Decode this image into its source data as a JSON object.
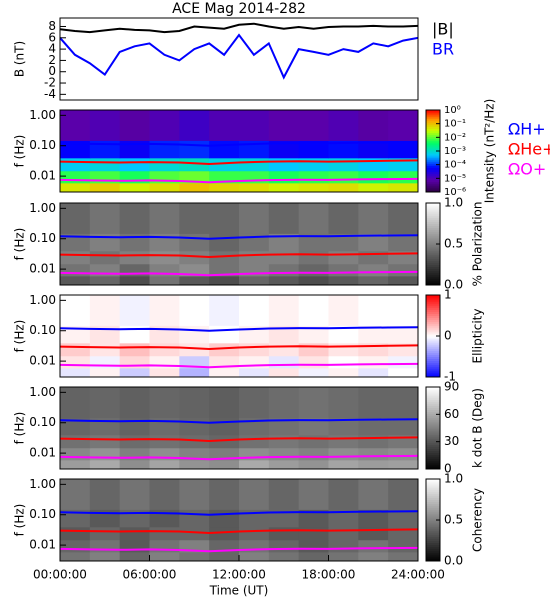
{
  "chart_data": [
    {
      "type": "line",
      "title": "ACE Mag 2014-282",
      "ylabel": "B (nT)",
      "x": [
        0,
        1,
        2,
        3,
        4,
        5,
        6,
        7,
        8,
        9,
        10,
        11,
        12,
        13,
        14,
        15,
        16,
        17,
        18,
        19,
        20,
        21,
        22,
        23,
        24
      ],
      "xlim": [
        0,
        24
      ],
      "ylim": [
        -5,
        9.5
      ],
      "yticks": [
        -4,
        -2,
        0,
        2,
        4,
        6,
        8
      ],
      "series": [
        {
          "name": "|B|",
          "color": "#000000",
          "values": [
            7.5,
            7.2,
            7.0,
            7.3,
            7.6,
            7.4,
            7.3,
            7.0,
            7.2,
            8.0,
            7.8,
            7.6,
            8.3,
            8.5,
            8.0,
            7.6,
            7.9,
            7.6,
            7.9,
            8.0,
            8.0,
            8.1,
            8.0,
            8.0,
            8.1
          ]
        },
        {
          "name": "BR",
          "color": "#0000ff",
          "values": [
            6.0,
            3.0,
            1.5,
            -0.5,
            3.5,
            4.5,
            5.0,
            3.0,
            2.0,
            4.0,
            5.0,
            3.0,
            6.5,
            3.0,
            5.0,
            -1.0,
            4.0,
            3.5,
            3.0,
            4.0,
            3.5,
            5.0,
            4.5,
            5.5,
            6.0
          ]
        }
      ]
    },
    {
      "type": "heatmap",
      "ylabel": "f (Hz)",
      "zlabel": "Intensity (nT²/Hz)",
      "colormap": "rainbow",
      "zlog": true,
      "xlim": [
        0,
        24
      ],
      "ylim": [
        0.003,
        1.5
      ],
      "ylog": true,
      "yticks": [
        {
          "value": 1,
          "label": "1.00"
        },
        {
          "value": 0.1,
          "label": "0.10"
        },
        {
          "value": 0.01,
          "label": "0.01"
        }
      ],
      "zlim": [
        1e-06,
        1
      ],
      "zticks": [
        {
          "value": 1,
          "label": "10⁰"
        },
        {
          "value": 0.1,
          "label": "10⁻¹"
        },
        {
          "value": 0.01,
          "label": "10⁻²"
        },
        {
          "value": 0.001,
          "label": "10⁻³"
        },
        {
          "value": 0.0001,
          "label": "10⁻⁴"
        },
        {
          "value": 1e-05,
          "label": "10⁻⁵"
        },
        {
          "value": 1e-06,
          "label": "10⁻⁶"
        }
      ],
      "x_edges": [
        0,
        2,
        4,
        6,
        8,
        10,
        12,
        14,
        16,
        18,
        20,
        22,
        24
      ],
      "y_edges": [
        0.003,
        0.006,
        0.015,
        0.04,
        0.15,
        1.5
      ],
      "z": [
        [
          0.05,
          0.08,
          0.04,
          0.06,
          0.1,
          0.07,
          0.06,
          0.04,
          0.05,
          0.06,
          0.04,
          0.05
        ],
        [
          0.006,
          0.008,
          0.005,
          0.009,
          0.012,
          0.007,
          0.007,
          0.005,
          0.006,
          0.007,
          0.005,
          0.006
        ],
        [
          0.0006,
          0.0008,
          0.0005,
          0.0009,
          0.0012,
          0.0007,
          0.0008,
          0.0005,
          0.0006,
          0.0007,
          0.0005,
          0.0006
        ],
        [
          6e-05,
          8e-05,
          5e-05,
          9e-05,
          0.0001,
          7e-05,
          8e-05,
          5e-05,
          6e-05,
          7e-05,
          5e-05,
          6e-05
        ],
        [
          8e-06,
          1e-05,
          7e-06,
          1e-05,
          1.5e-05,
          1e-05,
          1e-05,
          8e-06,
          8e-06,
          1e-05,
          7e-06,
          8e-06
        ]
      ],
      "x": [
        0,
        2,
        4,
        6,
        8,
        10,
        12,
        14,
        16,
        18,
        20,
        22,
        24
      ],
      "series": [
        {
          "name": "ΩH+",
          "color": "#0000ff",
          "values": [
            0.12,
            0.115,
            0.112,
            0.115,
            0.11,
            0.1,
            0.11,
            0.118,
            0.122,
            0.12,
            0.125,
            0.128,
            0.13
          ]
        },
        {
          "name": "ΩHe+",
          "color": "#ff0000",
          "values": [
            0.03,
            0.029,
            0.028,
            0.029,
            0.028,
            0.025,
            0.028,
            0.03,
            0.031,
            0.03,
            0.031,
            0.032,
            0.033
          ]
        },
        {
          "name": "ΩO+",
          "color": "#ff00ff",
          "values": [
            0.0075,
            0.0072,
            0.007,
            0.0072,
            0.0069,
            0.0063,
            0.0069,
            0.0074,
            0.0076,
            0.0075,
            0.0078,
            0.008,
            0.0081
          ]
        }
      ]
    },
    {
      "type": "heatmap",
      "ylabel": "f (Hz)",
      "zlabel": "% Polarization",
      "colormap": "gray",
      "xlim": [
        0,
        24
      ],
      "ylim": [
        0.003,
        1.5
      ],
      "ylog": true,
      "yticks": [
        {
          "value": 1,
          "label": "1.00"
        },
        {
          "value": 0.1,
          "label": "0.10"
        },
        {
          "value": 0.01,
          "label": "0.01"
        }
      ],
      "zlim": [
        0,
        1
      ],
      "zticks": [
        {
          "value": 0,
          "label": "0.0"
        },
        {
          "value": 0.5,
          "label": "0.5"
        },
        {
          "value": 1,
          "label": "1.0"
        }
      ],
      "x_edges": [
        0,
        2,
        4,
        6,
        8,
        10,
        12,
        14,
        16,
        18,
        20,
        22,
        24
      ],
      "y_edges": [
        0.003,
        0.006,
        0.015,
        0.04,
        0.15,
        1.5
      ],
      "z": [
        [
          0.35,
          0.4,
          0.3,
          0.45,
          0.35,
          0.3,
          0.4,
          0.35,
          0.3,
          0.35,
          0.4,
          0.35
        ],
        [
          0.45,
          0.5,
          0.4,
          0.5,
          0.55,
          0.45,
          0.5,
          0.45,
          0.4,
          0.45,
          0.5,
          0.45
        ],
        [
          0.5,
          0.45,
          0.5,
          0.55,
          0.5,
          0.45,
          0.5,
          0.5,
          0.45,
          0.5,
          0.45,
          0.5
        ],
        [
          0.45,
          0.5,
          0.45,
          0.5,
          0.45,
          0.4,
          0.45,
          0.5,
          0.45,
          0.45,
          0.5,
          0.45
        ],
        [
          0.4,
          0.45,
          0.4,
          0.45,
          0.4,
          0.4,
          0.45,
          0.4,
          0.45,
          0.4,
          0.45,
          0.4
        ]
      ],
      "x": [
        0,
        2,
        4,
        6,
        8,
        10,
        12,
        14,
        16,
        18,
        20,
        22,
        24
      ],
      "series": [
        {
          "color": "#0000ff",
          "values": [
            0.12,
            0.115,
            0.112,
            0.115,
            0.11,
            0.1,
            0.11,
            0.118,
            0.122,
            0.12,
            0.125,
            0.128,
            0.13
          ]
        },
        {
          "color": "#ff0000",
          "values": [
            0.03,
            0.029,
            0.028,
            0.029,
            0.028,
            0.025,
            0.028,
            0.03,
            0.031,
            0.03,
            0.031,
            0.032,
            0.033
          ]
        },
        {
          "color": "#ff00ff",
          "values": [
            0.0075,
            0.0072,
            0.007,
            0.0072,
            0.0069,
            0.0063,
            0.0069,
            0.0074,
            0.0076,
            0.0075,
            0.0078,
            0.008,
            0.0081
          ]
        }
      ]
    },
    {
      "type": "heatmap",
      "ylabel": "f (Hz)",
      "zlabel": "Ellipticity",
      "colormap": "bwr",
      "xlim": [
        0,
        24
      ],
      "ylim": [
        0.003,
        1.5
      ],
      "ylog": true,
      "yticks": [
        {
          "value": 1,
          "label": "1.00"
        },
        {
          "value": 0.1,
          "label": "0.10"
        },
        {
          "value": 0.01,
          "label": "0.01"
        }
      ],
      "zlim": [
        -1,
        1
      ],
      "zticks": [
        -1,
        0,
        1
      ],
      "x_edges": [
        0,
        2,
        4,
        6,
        8,
        10,
        12,
        14,
        16,
        18,
        20,
        22,
        24
      ],
      "y_edges": [
        0.003,
        0.006,
        0.015,
        0.04,
        0.15,
        1.5
      ],
      "z": [
        [
          -0.1,
          0.05,
          -0.2,
          0.1,
          -0.3,
          0.05,
          -0.1,
          0.1,
          -0.05,
          0.05,
          -0.1,
          0.0
        ],
        [
          0.1,
          -0.05,
          0.15,
          0.05,
          -0.2,
          0.1,
          0.05,
          -0.1,
          0.1,
          0.0,
          0.05,
          -0.05
        ],
        [
          0.2,
          0.1,
          0.25,
          0.15,
          0.1,
          0.2,
          0.15,
          0.1,
          0.2,
          0.1,
          0.15,
          0.1
        ],
        [
          0.05,
          0.1,
          0.0,
          0.1,
          0.05,
          0.0,
          0.05,
          0.1,
          0.05,
          0.0,
          0.05,
          0.05
        ],
        [
          0.0,
          0.05,
          -0.05,
          0.05,
          0.0,
          -0.05,
          0.0,
          0.05,
          0.0,
          0.05,
          0.0,
          0.0
        ]
      ],
      "x": [
        0,
        2,
        4,
        6,
        8,
        10,
        12,
        14,
        16,
        18,
        20,
        22,
        24
      ],
      "series": [
        {
          "color": "#0000ff",
          "values": [
            0.12,
            0.115,
            0.112,
            0.115,
            0.11,
            0.1,
            0.11,
            0.118,
            0.122,
            0.12,
            0.125,
            0.128,
            0.13
          ]
        },
        {
          "color": "#ff0000",
          "values": [
            0.03,
            0.029,
            0.028,
            0.029,
            0.028,
            0.025,
            0.028,
            0.03,
            0.031,
            0.03,
            0.031,
            0.032,
            0.033
          ]
        },
        {
          "color": "#ff00ff",
          "values": [
            0.0075,
            0.0072,
            0.007,
            0.0072,
            0.0069,
            0.0063,
            0.0069,
            0.0074,
            0.0076,
            0.0075,
            0.0078,
            0.008,
            0.0081
          ]
        }
      ]
    },
    {
      "type": "heatmap",
      "ylabel": "f (Hz)",
      "zlabel": "k dot B (Deg)",
      "colormap": "gray",
      "xlim": [
        0,
        24
      ],
      "ylim": [
        0.003,
        1.5
      ],
      "ylog": true,
      "yticks": [
        {
          "value": 1,
          "label": "1.00"
        },
        {
          "value": 0.1,
          "label": "0.10"
        },
        {
          "value": 0.01,
          "label": "0.01"
        }
      ],
      "zlim": [
        0,
        90
      ],
      "zticks": [
        0,
        30,
        60,
        90
      ],
      "x_edges": [
        0,
        2,
        4,
        6,
        8,
        10,
        12,
        14,
        16,
        18,
        20,
        22,
        24
      ],
      "y_edges": [
        0.003,
        0.006,
        0.015,
        0.04,
        0.15,
        1.5
      ],
      "z": [
        [
          55,
          60,
          50,
          58,
          52,
          50,
          60,
          55,
          52,
          58,
          55,
          56
        ],
        [
          48,
          52,
          45,
          50,
          46,
          44,
          50,
          48,
          46,
          50,
          48,
          50
        ],
        [
          40,
          42,
          38,
          40,
          38,
          36,
          40,
          42,
          40,
          42,
          40,
          42
        ],
        [
          36,
          38,
          35,
          38,
          36,
          34,
          38,
          40,
          42,
          40,
          38,
          38
        ],
        [
          35,
          36,
          34,
          36,
          35,
          33,
          36,
          38,
          40,
          38,
          36,
          36
        ]
      ],
      "x": [
        0,
        2,
        4,
        6,
        8,
        10,
        12,
        14,
        16,
        18,
        20,
        22,
        24
      ],
      "series": [
        {
          "color": "#0000ff",
          "values": [
            0.12,
            0.115,
            0.112,
            0.115,
            0.11,
            0.1,
            0.11,
            0.118,
            0.122,
            0.12,
            0.125,
            0.128,
            0.13
          ]
        },
        {
          "color": "#ff0000",
          "values": [
            0.03,
            0.029,
            0.028,
            0.029,
            0.028,
            0.025,
            0.028,
            0.03,
            0.031,
            0.03,
            0.031,
            0.032,
            0.033
          ]
        },
        {
          "color": "#ff00ff",
          "values": [
            0.0075,
            0.0072,
            0.007,
            0.0072,
            0.0069,
            0.0063,
            0.0069,
            0.0074,
            0.0076,
            0.0075,
            0.0078,
            0.008,
            0.0081
          ]
        }
      ]
    },
    {
      "type": "heatmap",
      "ylabel": "f (Hz)",
      "zlabel": "Coherency",
      "colormap": "gray",
      "xlabel": "Time (UT)",
      "xlim": [
        0,
        24
      ],
      "ylim": [
        0.003,
        1.5
      ],
      "ylog": true,
      "xticks": [
        {
          "value": 0,
          "label": "00:00:00"
        },
        {
          "value": 6,
          "label": "06:00:00"
        },
        {
          "value": 12,
          "label": "12:00:00"
        },
        {
          "value": 18,
          "label": "18:00:00"
        },
        {
          "value": 24,
          "label": "24:00:00"
        }
      ],
      "yticks": [
        {
          "value": 1,
          "label": "1.00"
        },
        {
          "value": 0.1,
          "label": "0.10"
        },
        {
          "value": 0.01,
          "label": "0.01"
        }
      ],
      "zlim": [
        0,
        1
      ],
      "zticks": [
        {
          "value": 0,
          "label": "0.0"
        },
        {
          "value": 0.5,
          "label": "0.5"
        },
        {
          "value": 1,
          "label": "1.0"
        }
      ],
      "x_edges": [
        0,
        2,
        4,
        6,
        8,
        10,
        12,
        14,
        16,
        18,
        20,
        22,
        24
      ],
      "y_edges": [
        0.003,
        0.006,
        0.015,
        0.04,
        0.15,
        1.5
      ],
      "z": [
        [
          0.45,
          0.5,
          0.4,
          0.5,
          0.45,
          0.4,
          0.5,
          0.45,
          0.4,
          0.45,
          0.5,
          0.45
        ],
        [
          0.4,
          0.45,
          0.35,
          0.45,
          0.5,
          0.4,
          0.45,
          0.4,
          0.35,
          0.4,
          0.45,
          0.4
        ],
        [
          0.35,
          0.4,
          0.35,
          0.4,
          0.4,
          0.35,
          0.4,
          0.35,
          0.35,
          0.4,
          0.35,
          0.4
        ],
        [
          0.4,
          0.35,
          0.4,
          0.35,
          0.4,
          0.35,
          0.4,
          0.4,
          0.35,
          0.4,
          0.35,
          0.4
        ],
        [
          0.45,
          0.4,
          0.45,
          0.4,
          0.45,
          0.4,
          0.45,
          0.4,
          0.45,
          0.4,
          0.45,
          0.4
        ]
      ],
      "x": [
        0,
        2,
        4,
        6,
        8,
        10,
        12,
        14,
        16,
        18,
        20,
        22,
        24
      ],
      "series": [
        {
          "color": "#0000ff",
          "values": [
            0.12,
            0.115,
            0.112,
            0.115,
            0.11,
            0.1,
            0.11,
            0.118,
            0.122,
            0.12,
            0.125,
            0.128,
            0.13
          ]
        },
        {
          "color": "#ff0000",
          "values": [
            0.03,
            0.029,
            0.028,
            0.029,
            0.028,
            0.025,
            0.028,
            0.03,
            0.031,
            0.03,
            0.031,
            0.032,
            0.033
          ]
        },
        {
          "color": "#ff00ff",
          "values": [
            0.0075,
            0.0072,
            0.007,
            0.0072,
            0.0069,
            0.0063,
            0.0069,
            0.0074,
            0.0076,
            0.0075,
            0.0078,
            0.008,
            0.0081
          ]
        }
      ]
    }
  ]
}
